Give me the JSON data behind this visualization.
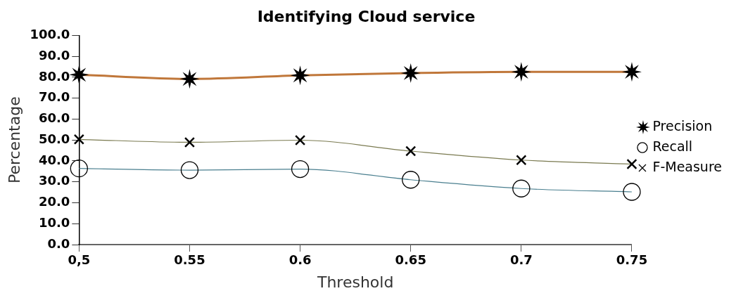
{
  "chart_data": {
    "type": "line",
    "title": "Identifying Cloud service",
    "xlabel": "Threshold",
    "ylabel": "Percentage",
    "categories": [
      "0,5",
      "0.55",
      "0.6",
      "0.65",
      "0.7",
      "0.75"
    ],
    "series": [
      {
        "name": "Precision",
        "color": "#c0773a",
        "marker": "star",
        "values": [
          81.2,
          79.2,
          80.9,
          82.0,
          82.6,
          82.6
        ]
      },
      {
        "name": "Recall",
        "color": "#4a7f8f",
        "marker": "circle",
        "values": [
          36.4,
          35.6,
          36.1,
          31.0,
          26.8,
          25.2
        ]
      },
      {
        "name": "F-Measure",
        "color": "#7a7a50",
        "marker": "cross",
        "values": [
          50.3,
          48.9,
          49.9,
          44.7,
          40.4,
          38.5
        ]
      }
    ],
    "ylim": [
      0,
      100
    ],
    "yticks": [
      {
        "value": 0,
        "label": "0.0"
      },
      {
        "value": 10,
        "label": "10.0"
      },
      {
        "value": 20,
        "label": "20.0"
      },
      {
        "value": 30,
        "label": "30.0"
      },
      {
        "value": 40,
        "label": "40.0"
      },
      {
        "value": 50,
        "label": "50.0"
      },
      {
        "value": 60,
        "label": "60.0"
      },
      {
        "value": 70,
        "label": "70.0"
      },
      {
        "value": 80,
        "label": "80.0"
      },
      {
        "value": 90,
        "label": "90.0"
      },
      {
        "value": 100,
        "label": "100.0"
      }
    ],
    "grid": false,
    "legend": "right"
  }
}
